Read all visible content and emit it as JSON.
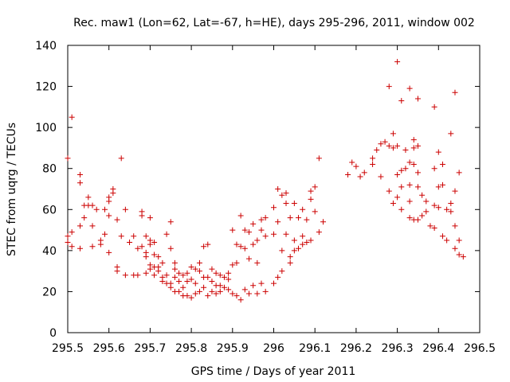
{
  "chart_data": {
    "type": "scatter",
    "title": "Rec. maw1 (Lon=62, Lat=-67, h=HE), days 295-296, 2011, window 002",
    "xlabel": "GPS time / Days of year 2011",
    "ylabel": "STEC from uqrg / TECUs",
    "xlim": [
      295.5,
      296.5
    ],
    "ylim": [
      0,
      140
    ],
    "x_ticks": [
      295.5,
      295.6,
      295.7,
      295.8,
      295.9,
      296.0,
      296.1,
      296.2,
      296.3,
      296.4,
      296.5
    ],
    "x_tick_labels": [
      "295.5",
      "295.6",
      "295.7",
      "295.8",
      "295.9",
      "296",
      "296.1",
      "296.2",
      "296.3",
      "296.4",
      "296.5"
    ],
    "y_ticks": [
      0,
      20,
      40,
      60,
      80,
      100,
      120,
      140
    ],
    "y_tick_labels": [
      "0",
      "20",
      "40",
      "60",
      "80",
      "100",
      "120",
      "140"
    ],
    "grid": false,
    "marker": "+",
    "color": "#cc0000",
    "points": [
      [
        295.5,
        85
      ],
      [
        295.5,
        47
      ],
      [
        295.5,
        44
      ],
      [
        295.51,
        105
      ],
      [
        295.51,
        49
      ],
      [
        295.51,
        42
      ],
      [
        295.53,
        77
      ],
      [
        295.53,
        73
      ],
      [
        295.53,
        52
      ],
      [
        295.53,
        41
      ],
      [
        295.54,
        62
      ],
      [
        295.54,
        56
      ],
      [
        295.55,
        66
      ],
      [
        295.55,
        62
      ],
      [
        295.56,
        62
      ],
      [
        295.56,
        52
      ],
      [
        295.56,
        42
      ],
      [
        295.57,
        60
      ],
      [
        295.58,
        45
      ],
      [
        295.58,
        43
      ],
      [
        295.59,
        60
      ],
      [
        295.59,
        48
      ],
      [
        295.6,
        66
      ],
      [
        295.6,
        64
      ],
      [
        295.6,
        57
      ],
      [
        295.6,
        39
      ],
      [
        295.61,
        70
      ],
      [
        295.61,
        68
      ],
      [
        295.62,
        55
      ],
      [
        295.62,
        32
      ],
      [
        295.62,
        30
      ],
      [
        295.63,
        85
      ],
      [
        295.63,
        47
      ],
      [
        295.64,
        60
      ],
      [
        295.64,
        28
      ],
      [
        295.65,
        44
      ],
      [
        295.66,
        47
      ],
      [
        295.66,
        28
      ],
      [
        295.67,
        41
      ],
      [
        295.67,
        28
      ],
      [
        295.68,
        59
      ],
      [
        295.68,
        57
      ],
      [
        295.68,
        42
      ],
      [
        295.69,
        39
      ],
      [
        295.69,
        37
      ],
      [
        295.69,
        29
      ],
      [
        295.69,
        47
      ],
      [
        295.7,
        56
      ],
      [
        295.7,
        45
      ],
      [
        295.7,
        43
      ],
      [
        295.7,
        33
      ],
      [
        295.7,
        31
      ],
      [
        295.71,
        44
      ],
      [
        295.71,
        38
      ],
      [
        295.71,
        32
      ],
      [
        295.71,
        28
      ],
      [
        295.72,
        37
      ],
      [
        295.72,
        32
      ],
      [
        295.72,
        30
      ],
      [
        295.73,
        34
      ],
      [
        295.73,
        27
      ],
      [
        295.73,
        25
      ],
      [
        295.74,
        48
      ],
      [
        295.74,
        28
      ],
      [
        295.74,
        24
      ],
      [
        295.75,
        54
      ],
      [
        295.75,
        41
      ],
      [
        295.75,
        24
      ],
      [
        295.75,
        22
      ],
      [
        295.76,
        34
      ],
      [
        295.76,
        31
      ],
      [
        295.76,
        27
      ],
      [
        295.76,
        20
      ],
      [
        295.77,
        29
      ],
      [
        295.77,
        25
      ],
      [
        295.77,
        20
      ],
      [
        295.78,
        28
      ],
      [
        295.78,
        22
      ],
      [
        295.78,
        18
      ],
      [
        295.79,
        29
      ],
      [
        295.79,
        25
      ],
      [
        295.79,
        18
      ],
      [
        295.8,
        32
      ],
      [
        295.8,
        26
      ],
      [
        295.8,
        17
      ],
      [
        295.81,
        31
      ],
      [
        295.81,
        24
      ],
      [
        295.81,
        19
      ],
      [
        295.82,
        34
      ],
      [
        295.82,
        30
      ],
      [
        295.82,
        20
      ],
      [
        295.83,
        42
      ],
      [
        295.83,
        27
      ],
      [
        295.83,
        22
      ],
      [
        295.84,
        43
      ],
      [
        295.84,
        27
      ],
      [
        295.84,
        18
      ],
      [
        295.85,
        31
      ],
      [
        295.85,
        25
      ],
      [
        295.85,
        20
      ],
      [
        295.86,
        29
      ],
      [
        295.86,
        23
      ],
      [
        295.86,
        19
      ],
      [
        295.87,
        28
      ],
      [
        295.87,
        23
      ],
      [
        295.87,
        20
      ],
      [
        295.88,
        27
      ],
      [
        295.88,
        22
      ],
      [
        295.89,
        29
      ],
      [
        295.89,
        26
      ],
      [
        295.89,
        21
      ],
      [
        295.9,
        50
      ],
      [
        295.9,
        33
      ],
      [
        295.9,
        19
      ],
      [
        295.91,
        43
      ],
      [
        295.91,
        34
      ],
      [
        295.91,
        18
      ],
      [
        295.92,
        57
      ],
      [
        295.92,
        42
      ],
      [
        295.92,
        16
      ],
      [
        295.93,
        50
      ],
      [
        295.93,
        41
      ],
      [
        295.93,
        21
      ],
      [
        295.94,
        49
      ],
      [
        295.94,
        36
      ],
      [
        295.94,
        19
      ],
      [
        295.95,
        53
      ],
      [
        295.95,
        43
      ],
      [
        295.95,
        23
      ],
      [
        295.96,
        45
      ],
      [
        295.96,
        34
      ],
      [
        295.96,
        19
      ],
      [
        295.97,
        55
      ],
      [
        295.97,
        50
      ],
      [
        295.97,
        24
      ],
      [
        295.98,
        56
      ],
      [
        295.98,
        47
      ],
      [
        295.98,
        20
      ],
      [
        296.0,
        61
      ],
      [
        296.0,
        48
      ],
      [
        296.0,
        24
      ],
      [
        296.01,
        70
      ],
      [
        296.01,
        54
      ],
      [
        296.01,
        27
      ],
      [
        296.02,
        67
      ],
      [
        296.02,
        40
      ],
      [
        296.02,
        30
      ],
      [
        296.03,
        68
      ],
      [
        296.03,
        63
      ],
      [
        296.03,
        48
      ],
      [
        296.04,
        56
      ],
      [
        296.04,
        37
      ],
      [
        296.04,
        34
      ],
      [
        296.05,
        63
      ],
      [
        296.05,
        45
      ],
      [
        296.05,
        40
      ],
      [
        296.06,
        56
      ],
      [
        296.06,
        41
      ],
      [
        296.07,
        60
      ],
      [
        296.07,
        47
      ],
      [
        296.07,
        43
      ],
      [
        296.08,
        55
      ],
      [
        296.08,
        44
      ],
      [
        296.09,
        69
      ],
      [
        296.09,
        65
      ],
      [
        296.09,
        45
      ],
      [
        296.1,
        71
      ],
      [
        296.1,
        59
      ],
      [
        296.11,
        85
      ],
      [
        296.11,
        49
      ],
      [
        296.12,
        54
      ],
      [
        296.18,
        77
      ],
      [
        296.19,
        83
      ],
      [
        296.2,
        81
      ],
      [
        296.21,
        76
      ],
      [
        296.22,
        78
      ],
      [
        296.24,
        85
      ],
      [
        296.24,
        82
      ],
      [
        296.25,
        89
      ],
      [
        296.26,
        92
      ],
      [
        296.26,
        76
      ],
      [
        296.27,
        93
      ],
      [
        296.28,
        120
      ],
      [
        296.28,
        91
      ],
      [
        296.28,
        69
      ],
      [
        296.29,
        97
      ],
      [
        296.29,
        90
      ],
      [
        296.29,
        63
      ],
      [
        296.3,
        132
      ],
      [
        296.3,
        91
      ],
      [
        296.3,
        77
      ],
      [
        296.3,
        66
      ],
      [
        296.31,
        113
      ],
      [
        296.31,
        79
      ],
      [
        296.31,
        71
      ],
      [
        296.31,
        60
      ],
      [
        296.32,
        89
      ],
      [
        296.32,
        80
      ],
      [
        296.33,
        119
      ],
      [
        296.33,
        83
      ],
      [
        296.33,
        72
      ],
      [
        296.33,
        64
      ],
      [
        296.33,
        56
      ],
      [
        296.34,
        94
      ],
      [
        296.34,
        90
      ],
      [
        296.34,
        82
      ],
      [
        296.34,
        55
      ],
      [
        296.35,
        114
      ],
      [
        296.35,
        91
      ],
      [
        296.35,
        78
      ],
      [
        296.35,
        71
      ],
      [
        296.35,
        55
      ],
      [
        296.36,
        67
      ],
      [
        296.36,
        57
      ],
      [
        296.37,
        59
      ],
      [
        296.37,
        64
      ],
      [
        296.38,
        52
      ],
      [
        296.39,
        110
      ],
      [
        296.39,
        80
      ],
      [
        296.39,
        62
      ],
      [
        296.39,
        51
      ],
      [
        296.4,
        88
      ],
      [
        296.4,
        71
      ],
      [
        296.4,
        61
      ],
      [
        296.41,
        82
      ],
      [
        296.41,
        72
      ],
      [
        296.41,
        47
      ],
      [
        296.42,
        45
      ],
      [
        296.42,
        60
      ],
      [
        296.43,
        97
      ],
      [
        296.43,
        63
      ],
      [
        296.43,
        59
      ],
      [
        296.44,
        117
      ],
      [
        296.44,
        69
      ],
      [
        296.44,
        52
      ],
      [
        296.44,
        41
      ],
      [
        296.45,
        78
      ],
      [
        296.45,
        45
      ],
      [
        296.45,
        38
      ],
      [
        296.46,
        37
      ]
    ]
  }
}
